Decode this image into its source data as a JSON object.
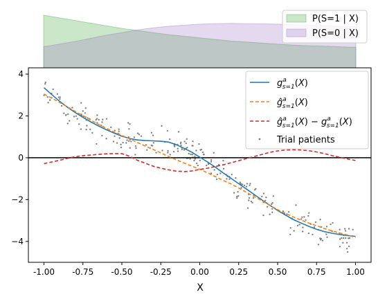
{
  "chart_data": [
    {
      "type": "area",
      "title": "",
      "xlim": [
        -1.0,
        1.0
      ],
      "x": [
        -1.0,
        -0.9,
        -0.8,
        -0.7,
        -0.6,
        -0.5,
        -0.4,
        -0.3,
        -0.2,
        -0.1,
        0.0,
        0.1,
        0.2,
        0.3,
        0.4,
        0.5,
        0.6,
        0.7,
        0.8,
        0.9,
        1.0
      ],
      "series": [
        {
          "name": "P(S=1 | X)",
          "color": "#2ca02c",
          "values": [
            1.0,
            0.95,
            0.9,
            0.85,
            0.8,
            0.75,
            0.71,
            0.67,
            0.63,
            0.6,
            0.57,
            0.54,
            0.51,
            0.49,
            0.47,
            0.45,
            0.43,
            0.42,
            0.41,
            0.4,
            0.39
          ]
        },
        {
          "name": "P(S=0 | X)",
          "color": "#9467bd",
          "values": [
            0.4,
            0.45,
            0.5,
            0.56,
            0.62,
            0.67,
            0.72,
            0.76,
            0.79,
            0.81,
            0.83,
            0.84,
            0.845,
            0.84,
            0.835,
            0.83,
            0.82,
            0.81,
            0.8,
            0.79,
            0.78
          ]
        }
      ],
      "legend": "top-right"
    },
    {
      "type": "line",
      "xlabel": "X",
      "ylabel": "",
      "xlim": [
        -1.1,
        1.1
      ],
      "ylim": [
        -5.0,
        4.3
      ],
      "xticks": [
        "-1.00",
        "-0.75",
        "-0.50",
        "-0.25",
        "0.00",
        "0.25",
        "0.50",
        "0.75",
        "1.00"
      ],
      "yticks": [
        "4",
        "2",
        "0",
        "-2",
        "-4"
      ],
      "hline": 0,
      "legend": "top-right",
      "x": [
        -1.0,
        -0.95,
        -0.9,
        -0.85,
        -0.8,
        -0.75,
        -0.7,
        -0.65,
        -0.6,
        -0.55,
        -0.5,
        -0.45,
        -0.4,
        -0.35,
        -0.3,
        -0.25,
        -0.2,
        -0.15,
        -0.1,
        -0.05,
        0.0,
        0.05,
        0.1,
        0.15,
        0.2,
        0.25,
        0.3,
        0.35,
        0.4,
        0.45,
        0.5,
        0.55,
        0.6,
        0.65,
        0.7,
        0.75,
        0.8,
        0.85,
        0.9,
        0.95,
        1.0
      ],
      "series": [
        {
          "name": "g^a_{s=1}(X)",
          "style": "solid",
          "color": "#1f77b4",
          "values": [
            3.35,
            3.02,
            2.7,
            2.42,
            2.17,
            1.93,
            1.72,
            1.52,
            1.34,
            1.18,
            1.03,
            0.92,
            0.85,
            0.82,
            0.81,
            0.79,
            0.75,
            0.62,
            0.45,
            0.26,
            0.03,
            -0.2,
            -0.45,
            -0.72,
            -0.98,
            -1.24,
            -1.5,
            -1.76,
            -2.02,
            -2.27,
            -2.52,
            -2.74,
            -2.95,
            -3.12,
            -3.28,
            -3.42,
            -3.53,
            -3.61,
            -3.67,
            -3.72,
            -3.76
          ]
        },
        {
          "name": "ĝ^a_{s=1}(X)",
          "style": "dashed",
          "color": "#ff7f0e",
          "values": [
            3.05,
            2.85,
            2.65,
            2.43,
            2.22,
            2.01,
            1.8,
            1.6,
            1.41,
            1.23,
            1.07,
            0.9,
            0.73,
            0.56,
            0.4,
            0.23,
            0.06,
            -0.1,
            -0.25,
            -0.4,
            -0.55,
            -0.72,
            -0.9,
            -1.08,
            -1.25,
            -1.45,
            -1.65,
            -1.86,
            -2.06,
            -2.28,
            -2.48,
            -2.66,
            -2.83,
            -2.98,
            -3.12,
            -3.25,
            -3.38,
            -3.5,
            -3.6,
            -3.7,
            -3.82
          ]
        },
        {
          "name": "ĝ^a_{s=1}(X) − g^a_{s=1}(X)",
          "style": "dashed",
          "color": "#d62728",
          "values": [
            -0.28,
            -0.2,
            -0.12,
            -0.03,
            0.05,
            0.1,
            0.13,
            0.16,
            0.19,
            0.2,
            0.2,
            0.07,
            -0.12,
            -0.26,
            -0.4,
            -0.5,
            -0.58,
            -0.64,
            -0.66,
            -0.63,
            -0.56,
            -0.5,
            -0.42,
            -0.34,
            -0.24,
            -0.14,
            -0.04,
            0.06,
            0.16,
            0.26,
            0.33,
            0.37,
            0.38,
            0.37,
            0.34,
            0.28,
            0.2,
            0.1,
            0.02,
            -0.06,
            -0.13
          ]
        },
        {
          "name": "Trial patients",
          "style": "scatter",
          "color": "#808080",
          "points": []
        }
      ]
    }
  ]
}
